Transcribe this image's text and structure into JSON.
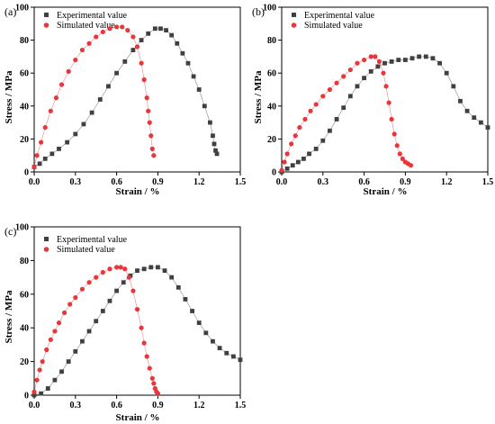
{
  "colors": {
    "experimental": "#404040",
    "simulated": "#e8363b",
    "axis": "#000000"
  },
  "chart_data": [
    {
      "type": "scatter",
      "panel_label": "(a)",
      "xlabel": "Strain / %",
      "ylabel": "Stress / MPa",
      "xlim": [
        0,
        1.5
      ],
      "ylim": [
        0,
        100
      ],
      "xticks": [
        "0.0",
        "0.3",
        "0.6",
        "0.9",
        "1.2",
        "1.5"
      ],
      "yticks": [
        "0",
        "20",
        "40",
        "60",
        "80",
        "100"
      ],
      "grid": false,
      "legend": "top-left",
      "series": [
        {
          "name": "Experimental value",
          "marker": "square",
          "color": "#404040",
          "x": [
            0.0,
            0.04,
            0.08,
            0.13,
            0.18,
            0.24,
            0.3,
            0.36,
            0.42,
            0.48,
            0.54,
            0.6,
            0.66,
            0.72,
            0.78,
            0.83,
            0.88,
            0.92,
            0.96,
            1.0,
            1.04,
            1.08,
            1.12,
            1.16,
            1.2,
            1.24,
            1.28,
            1.3,
            1.31,
            1.32,
            1.33
          ],
          "y": [
            3,
            5,
            8,
            11,
            14,
            18,
            23,
            29,
            36,
            44,
            52,
            60,
            67,
            74,
            80,
            84,
            87,
            87,
            86,
            83,
            78,
            72,
            66,
            58,
            50,
            40,
            30,
            22,
            17,
            13,
            11
          ]
        },
        {
          "name": "Simulated value",
          "marker": "circle",
          "color": "#e8363b",
          "x": [
            0.0,
            0.02,
            0.05,
            0.08,
            0.12,
            0.16,
            0.2,
            0.25,
            0.3,
            0.35,
            0.4,
            0.45,
            0.5,
            0.55,
            0.6,
            0.64,
            0.68,
            0.72,
            0.75,
            0.78,
            0.8,
            0.82,
            0.83,
            0.84,
            0.85,
            0.86,
            0.87
          ],
          "y": [
            3,
            10,
            18,
            27,
            37,
            45,
            53,
            61,
            68,
            74,
            78,
            82,
            85,
            87,
            88,
            88,
            86,
            82,
            76,
            66,
            56,
            45,
            37,
            30,
            22,
            14,
            10
          ]
        }
      ]
    },
    {
      "type": "scatter",
      "panel_label": "(b)",
      "xlabel": "Strain / %",
      "ylabel": "Stress / MPa",
      "xlim": [
        0,
        1.5
      ],
      "ylim": [
        0,
        100
      ],
      "xticks": [
        "0.0",
        "0.3",
        "0.6",
        "0.9",
        "1.2",
        "1.5"
      ],
      "yticks": [
        "0",
        "20",
        "40",
        "60",
        "80",
        "100"
      ],
      "grid": false,
      "legend": "top-left",
      "series": [
        {
          "name": "Experimental value",
          "marker": "square",
          "color": "#404040",
          "x": [
            0.0,
            0.04,
            0.08,
            0.12,
            0.16,
            0.2,
            0.25,
            0.3,
            0.35,
            0.4,
            0.45,
            0.5,
            0.55,
            0.6,
            0.65,
            0.7,
            0.75,
            0.8,
            0.85,
            0.9,
            0.95,
            1.0,
            1.05,
            1.1,
            1.15,
            1.2,
            1.25,
            1.3,
            1.35,
            1.4,
            1.45,
            1.5
          ],
          "y": [
            0,
            2,
            4,
            6,
            8,
            11,
            14,
            19,
            25,
            32,
            39,
            46,
            52,
            57,
            61,
            64,
            66,
            67,
            68,
            68,
            69,
            70,
            70,
            69,
            66,
            60,
            52,
            43,
            37,
            33,
            30,
            27
          ]
        },
        {
          "name": "Simulated value",
          "marker": "circle",
          "color": "#e8363b",
          "x": [
            0.0,
            0.02,
            0.04,
            0.07,
            0.1,
            0.13,
            0.17,
            0.21,
            0.25,
            0.3,
            0.35,
            0.4,
            0.45,
            0.5,
            0.55,
            0.6,
            0.65,
            0.68,
            0.71,
            0.74,
            0.76,
            0.78,
            0.8,
            0.82,
            0.84,
            0.86,
            0.88,
            0.9,
            0.92,
            0.94
          ],
          "y": [
            1,
            6,
            11,
            17,
            22,
            27,
            32,
            37,
            41,
            46,
            50,
            54,
            58,
            62,
            66,
            68,
            70,
            70,
            67,
            60,
            52,
            42,
            32,
            23,
            16,
            11,
            8,
            6,
            5,
            4
          ]
        }
      ]
    },
    {
      "type": "scatter",
      "panel_label": "(c)",
      "xlabel": "Strain / %",
      "ylabel": "Stress / MPa",
      "xlim": [
        0,
        1.5
      ],
      "ylim": [
        0,
        100
      ],
      "xticks": [
        "0.0",
        "0.3",
        "0.6",
        "0.9",
        "1.2",
        "1.5"
      ],
      "yticks": [
        "0",
        "20",
        "40",
        "60",
        "80",
        "100"
      ],
      "grid": false,
      "legend": "top-left",
      "series": [
        {
          "name": "Experimental value",
          "marker": "square",
          "color": "#404040",
          "x": [
            0.0,
            0.05,
            0.1,
            0.15,
            0.2,
            0.25,
            0.3,
            0.35,
            0.4,
            0.45,
            0.5,
            0.55,
            0.6,
            0.65,
            0.7,
            0.75,
            0.8,
            0.85,
            0.9,
            0.95,
            1.0,
            1.05,
            1.1,
            1.15,
            1.2,
            1.25,
            1.3,
            1.35,
            1.4,
            1.45,
            1.5
          ],
          "y": [
            0,
            1,
            4,
            9,
            14,
            20,
            26,
            32,
            38,
            44,
            50,
            56,
            62,
            67,
            71,
            74,
            75,
            76,
            76,
            74,
            70,
            64,
            57,
            50,
            43,
            37,
            32,
            28,
            25,
            23,
            21
          ]
        },
        {
          "name": "Simulated value",
          "marker": "circle",
          "color": "#e8363b",
          "x": [
            0.0,
            0.02,
            0.04,
            0.06,
            0.09,
            0.12,
            0.15,
            0.18,
            0.22,
            0.26,
            0.3,
            0.35,
            0.4,
            0.45,
            0.5,
            0.55,
            0.6,
            0.63,
            0.66,
            0.69,
            0.72,
            0.75,
            0.78,
            0.8,
            0.82,
            0.84,
            0.86,
            0.87,
            0.88,
            0.89,
            0.9
          ],
          "y": [
            2,
            9,
            15,
            20,
            27,
            33,
            38,
            43,
            49,
            54,
            58,
            63,
            67,
            70,
            73,
            75,
            76,
            76,
            75,
            70,
            62,
            51,
            40,
            31,
            23,
            16,
            10,
            7,
            4,
            2,
            1
          ]
        }
      ]
    }
  ]
}
